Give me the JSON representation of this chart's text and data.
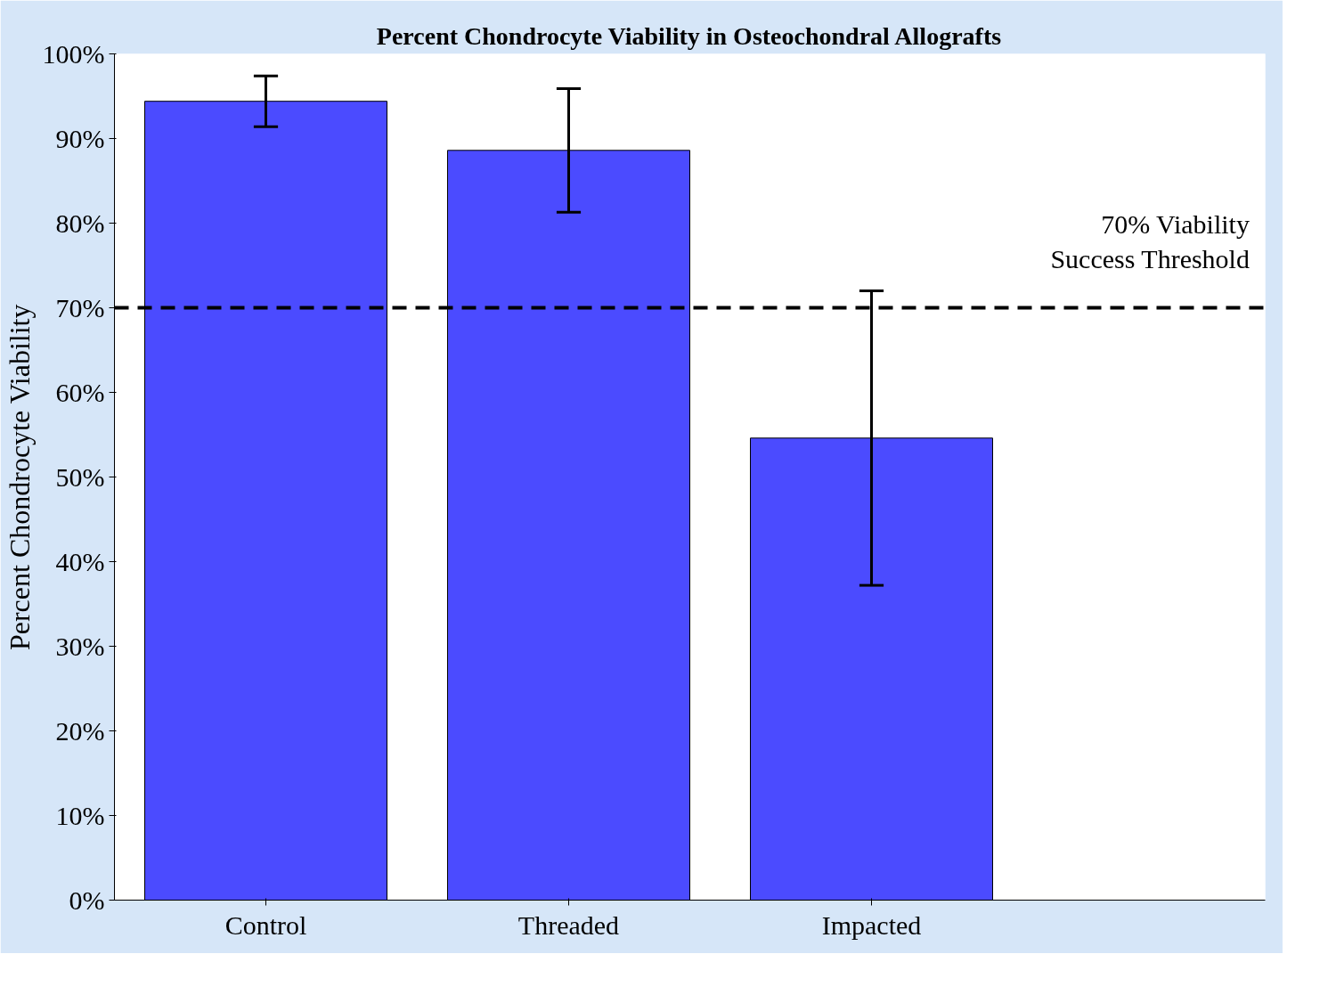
{
  "chart_data": {
    "type": "bar",
    "title": "Percent Chondrocyte Viability in Osteochondral Allografts",
    "ylabel": "Percent Chondrocyte Viability",
    "categories": [
      "Control",
      "Threaded",
      "Impacted"
    ],
    "values": [
      94.4,
      88.6,
      54.6
    ],
    "errors": [
      3,
      7.3,
      17.4
    ],
    "color": "#4b4bff",
    "ylim": [
      0,
      100
    ],
    "yticks": [
      {
        "value": 0,
        "label": "0%"
      },
      {
        "value": 10,
        "label": "10%"
      },
      {
        "value": 20,
        "label": "20%"
      },
      {
        "value": 30,
        "label": "30%"
      },
      {
        "value": 40,
        "label": "40%"
      },
      {
        "value": 50,
        "label": "50%"
      },
      {
        "value": 60,
        "label": "60%"
      },
      {
        "value": 70,
        "label": "70%"
      },
      {
        "value": 80,
        "label": "80%"
      },
      {
        "value": 90,
        "label": "90%"
      },
      {
        "value": 100,
        "label": "100%"
      }
    ],
    "ref_lines": [
      {
        "axis": "y",
        "value": 70,
        "label": "70% Viability\nSuccess Threshold",
        "color": "#000000",
        "line_style": "dashed"
      }
    ],
    "grid": false
  }
}
